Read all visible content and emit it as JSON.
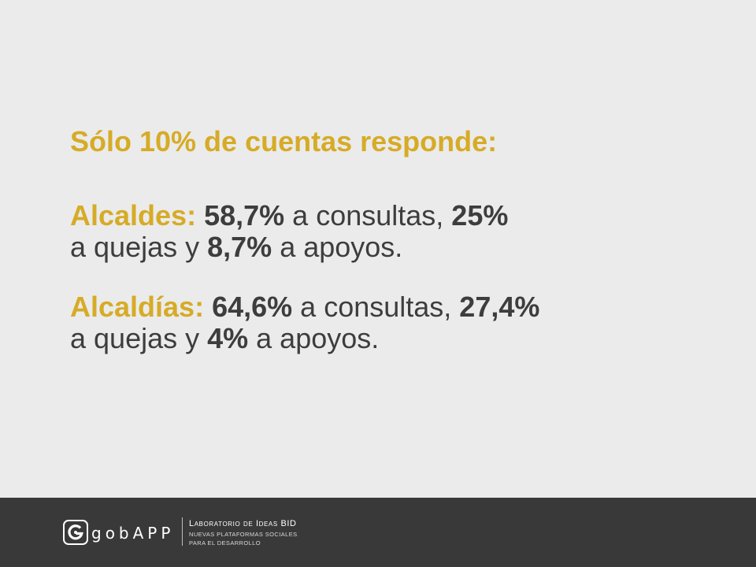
{
  "slide": {
    "title": "Sólo 10% de cuentas responde:",
    "alcaldes": {
      "label": "Alcaldes:",
      "consultas_value": "58,7%",
      "consultas_text": " a consultas, ",
      "quejas_value": "25%",
      "quejas_text": "a quejas y ",
      "apoyos_value": "8,7%",
      "apoyos_text": " a apoyos."
    },
    "alcaldias": {
      "label": "Alcaldías:",
      "consultas_value": "64,6%",
      "consultas_text": " a consultas, ",
      "quejas_value": "27,4%",
      "quejas_text": "a quejas y ",
      "apoyos_value": "4%",
      "apoyos_text": " a apoyos."
    }
  },
  "footer": {
    "logo_letter": "G",
    "logo_word": "gobAPP",
    "lab_title": "Laboratorio de Ideas BID",
    "lab_line1": "NUEVAS PLATAFORMAS SOCIALES",
    "lab_line2": "PARA EL DESARROLLO"
  },
  "colors": {
    "background": "#ebebeb",
    "accent": "#d6ab26",
    "text": "#3d3d3d",
    "footer": "#3a3939"
  }
}
